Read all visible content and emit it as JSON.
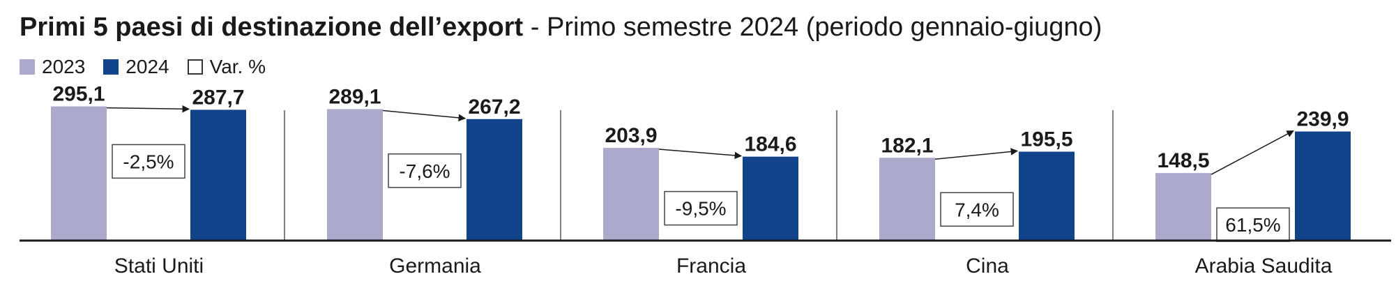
{
  "title": "Primi 5 paesi di destinazione dell’export",
  "separator": " - ",
  "subtitle": "Primo semestre 2024 (periodo gennaio-giugno)",
  "colors": {
    "y2023": "#abaacd",
    "y2024": "#11438b",
    "text": "#1a1a1a",
    "axis": "#1a1a1a"
  },
  "legend": [
    {
      "label": "2023",
      "swatch": "#abaacd"
    },
    {
      "label": "2024",
      "swatch": "#11438b"
    },
    {
      "label": "Var. %",
      "swatch": "outline"
    }
  ],
  "chart_data": {
    "type": "bar",
    "categories": [
      "Stati Uniti",
      "Germania",
      "Francia",
      "Cina",
      "Arabia Saudita"
    ],
    "series": [
      {
        "name": "2023",
        "values": [
          295.1,
          289.1,
          203.9,
          182.1,
          148.5
        ]
      },
      {
        "name": "2024",
        "values": [
          287.7,
          267.2,
          184.6,
          195.5,
          239.9
        ]
      }
    ],
    "data_labels": {
      "2023": [
        "295,1",
        "289,1",
        "203,9",
        "182,1",
        "148,5"
      ],
      "2024": [
        "287,7",
        "267,2",
        "184,6",
        "195,5",
        "239,9"
      ]
    },
    "var_pct": [
      "-2,5%",
      "-7,6%",
      "-9,5%",
      "7,4%",
      "61,5%"
    ],
    "ylim": [
      0,
      300
    ],
    "grid": false,
    "legend_position": "top-left"
  }
}
